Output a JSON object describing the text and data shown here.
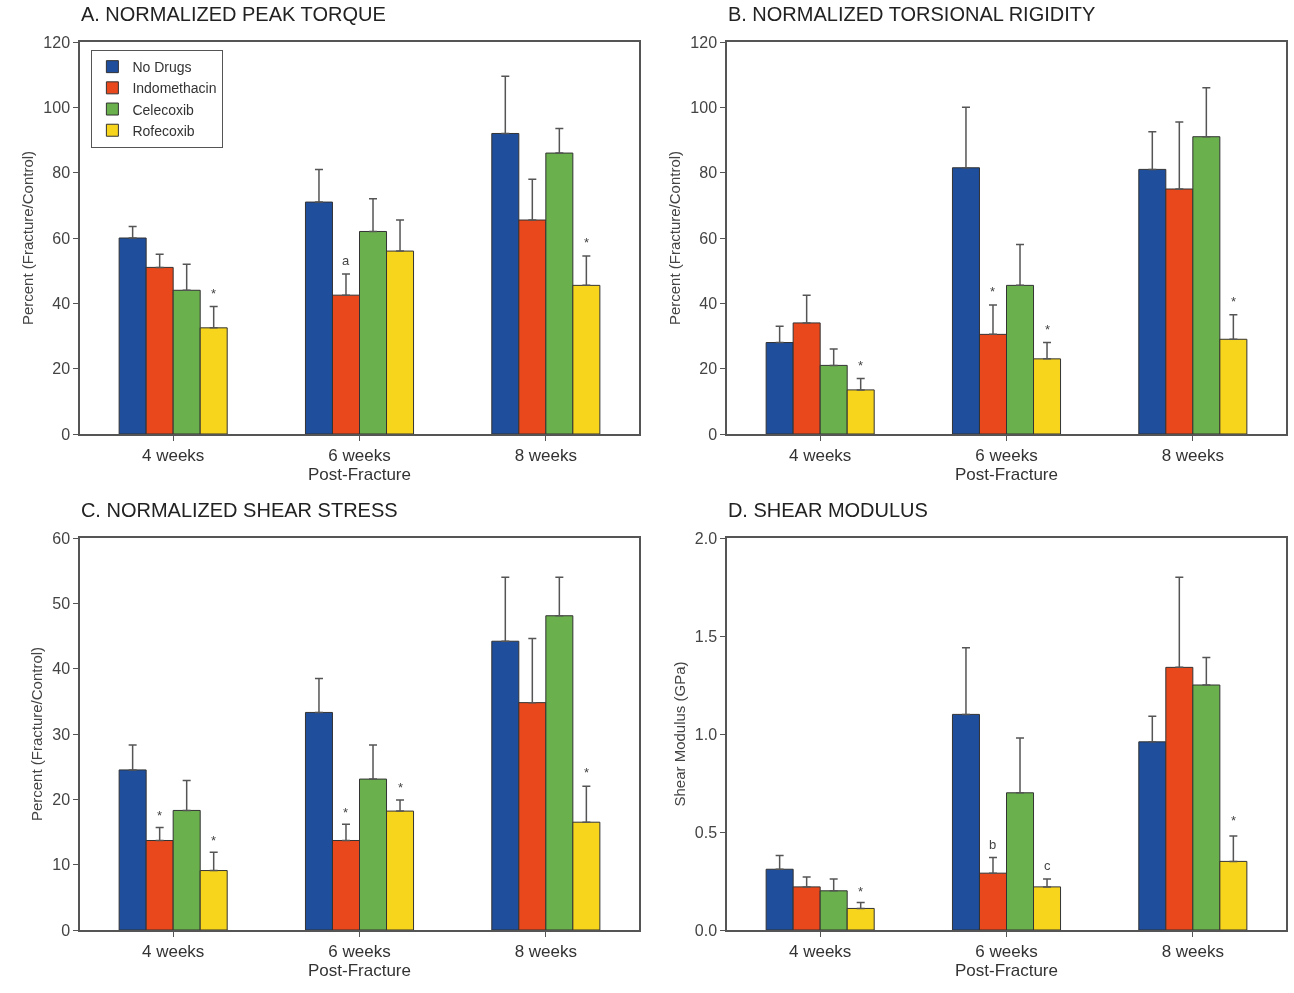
{
  "chart_data": [
    {
      "type": "bar",
      "title": "A. NORMALIZED PEAK TORQUE",
      "ylabel": "Percent (Fracture/Control)",
      "xlabel": "Post-Fracture",
      "categories": [
        "4 weeks",
        "6 weeks",
        "8 weeks"
      ],
      "ylim": [
        0,
        120
      ],
      "yticks": [
        0,
        20,
        40,
        60,
        80,
        100,
        120
      ],
      "grid": false,
      "legend": "top left",
      "series": [
        {
          "name": "No Drugs",
          "color": "#1f4e9c",
          "values": [
            60,
            71,
            92
          ],
          "errors": [
            [
              60,
              63.5
            ],
            [
              71,
              81
            ],
            [
              92,
              109.5
            ]
          ]
        },
        {
          "name": "Indomethacin",
          "color": "#e8481c",
          "values": [
            51,
            42.5,
            65.5
          ],
          "errors": [
            [
              51,
              55
            ],
            [
              42.5,
              49
            ],
            [
              65.5,
              78
            ]
          ]
        },
        {
          "name": "Celecoxib",
          "color": "#6ab04c",
          "values": [
            44,
            62,
            86
          ],
          "errors": [
            [
              44,
              52
            ],
            [
              62,
              72
            ],
            [
              86,
              93.5
            ]
          ]
        },
        {
          "name": "Rofecoxib",
          "color": "#f7d51d",
          "values": [
            32.5,
            56,
            45.5
          ],
          "errors": [
            [
              32.5,
              39
            ],
            [
              56,
              65.5
            ],
            [
              45.5,
              54.5
            ]
          ]
        }
      ],
      "annotations": [
        {
          "text": "*",
          "x": "4 weeks",
          "y": 42
        },
        {
          "text": "a",
          "x": "6 weeks",
          "y": 52
        },
        {
          "text": "*",
          "x": "8 weeks",
          "y": 57.5
        }
      ]
    },
    {
      "type": "bar",
      "title": "B. NORMALIZED TORSIONAL RIGIDITY",
      "ylabel": "Percent (Fracture/Control)",
      "xlabel": "Post-Fracture",
      "categories": [
        "4 weeks",
        "6 weeks",
        "8 weeks"
      ],
      "ylim": [
        0,
        120
      ],
      "yticks": [
        0,
        20,
        40,
        60,
        80,
        100,
        120
      ],
      "grid": false,
      "series": [
        {
          "color": "#1f4e9c",
          "values": [
            28,
            81.5,
            81
          ],
          "errors": [
            [
              28,
              33
            ],
            [
              81.5,
              100
            ],
            [
              81,
              92.5
            ]
          ]
        },
        {
          "color": "#e8481c",
          "values": [
            34,
            30.5,
            75
          ],
          "errors": [
            [
              34,
              42.5
            ],
            [
              30.5,
              39.5
            ],
            [
              75,
              95.5
            ]
          ]
        },
        {
          "color": "#6ab04c",
          "values": [
            21,
            45.5,
            91
          ],
          "errors": [
            [
              21,
              26
            ],
            [
              45.5,
              58
            ],
            [
              91,
              106
            ]
          ]
        },
        {
          "color": "#f7d51d",
          "values": [
            13.5,
            23,
            29
          ],
          "errors": [
            [
              13.5,
              17
            ],
            [
              23,
              28
            ],
            [
              29,
              36.5
            ]
          ]
        }
      ],
      "annotations": [
        {
          "text": "*",
          "x": "4 weeks",
          "y": 20
        },
        {
          "text": "*",
          "x": "6 weeks",
          "y": 42.5
        },
        {
          "text": "*",
          "x": "6 weeks",
          "y": 31
        },
        {
          "text": "*",
          "x": "8 weeks",
          "y": 39.5
        }
      ]
    },
    {
      "type": "bar",
      "title": "C. NORMALIZED SHEAR STRESS",
      "ylabel": "Percent (Fracture/Control)",
      "xlabel": "Post-Fracture",
      "categories": [
        "4 weeks",
        "6 weeks",
        "8 weeks"
      ],
      "ylim": [
        0,
        60
      ],
      "yticks": [
        0,
        10,
        20,
        30,
        40,
        50,
        60
      ],
      "grid": false,
      "series": [
        {
          "color": "#1f4e9c",
          "values": [
            24.5,
            33.3,
            44.2
          ],
          "errors": [
            [
              24.5,
              28.3
            ],
            [
              33.3,
              38.5
            ],
            [
              44.2,
              54
            ]
          ]
        },
        {
          "color": "#e8481c",
          "values": [
            13.7,
            13.7,
            34.8
          ],
          "errors": [
            [
              13.7,
              15.7
            ],
            [
              13.7,
              16.2
            ],
            [
              34.8,
              44.6
            ]
          ]
        },
        {
          "color": "#6ab04c",
          "values": [
            18.3,
            23.1,
            48.1
          ],
          "errors": [
            [
              18.3,
              22.9
            ],
            [
              23.1,
              28.3
            ],
            [
              48.1,
              54
            ]
          ]
        },
        {
          "color": "#f7d51d",
          "values": [
            9.1,
            18.2,
            16.5
          ],
          "errors": [
            [
              9.1,
              11.9
            ],
            [
              18.2,
              19.9
            ],
            [
              16.5,
              22
            ]
          ]
        }
      ],
      "annotations": [
        {
          "text": "*",
          "x": "4 weeks",
          "y": 17
        },
        {
          "text": "*",
          "x": "4 weeks",
          "y": 13.2
        },
        {
          "text": "*",
          "x": "6 weeks",
          "y": 17.5
        },
        {
          "text": "*",
          "x": "6 weeks",
          "y": 21.2
        },
        {
          "text": "*",
          "x": "8 weeks",
          "y": 23.5
        }
      ]
    },
    {
      "type": "bar",
      "title": "D. SHEAR MODULUS",
      "ylabel": "Shear Modulus (GPa)",
      "xlabel": "Post-Fracture",
      "categories": [
        "4 weeks",
        "6 weeks",
        "8 weeks"
      ],
      "ylim": [
        0,
        2
      ],
      "yticks": [
        {
          "value": 0,
          "label": "0.0"
        },
        {
          "value": 0.5,
          "label": "0.5"
        },
        {
          "value": 1,
          "label": "1.0"
        },
        {
          "value": 1.5,
          "label": "1.5"
        },
        {
          "value": 2,
          "label": "2.0"
        }
      ],
      "grid": false,
      "series": [
        {
          "color": "#1f4e9c",
          "values": [
            0.31,
            1.1,
            0.96
          ],
          "errors": [
            [
              0.31,
              0.38
            ],
            [
              1.1,
              1.44
            ],
            [
              0.96,
              1.09
            ]
          ]
        },
        {
          "color": "#e8481c",
          "values": [
            0.22,
            0.29,
            1.34
          ],
          "errors": [
            [
              0.22,
              0.27
            ],
            [
              0.29,
              0.37
            ],
            [
              1.34,
              1.8
            ]
          ]
        },
        {
          "color": "#6ab04c",
          "values": [
            0.2,
            0.7,
            1.25
          ],
          "errors": [
            [
              0.2,
              0.26
            ],
            [
              0.7,
              0.98
            ],
            [
              1.25,
              1.39
            ]
          ]
        },
        {
          "color": "#f7d51d",
          "values": [
            0.11,
            0.22,
            0.35
          ],
          "errors": [
            [
              0.11,
              0.14
            ],
            [
              0.22,
              0.26
            ],
            [
              0.35,
              0.48
            ]
          ]
        }
      ],
      "annotations": [
        {
          "text": "*",
          "x": "4 weeks",
          "y": 0.18
        },
        {
          "text": "b",
          "x": "6 weeks",
          "y": 0.42
        },
        {
          "text": "c",
          "x": "6 weeks",
          "y": 0.31
        },
        {
          "text": "*",
          "x": "8 weeks",
          "y": 0.54
        }
      ]
    }
  ]
}
